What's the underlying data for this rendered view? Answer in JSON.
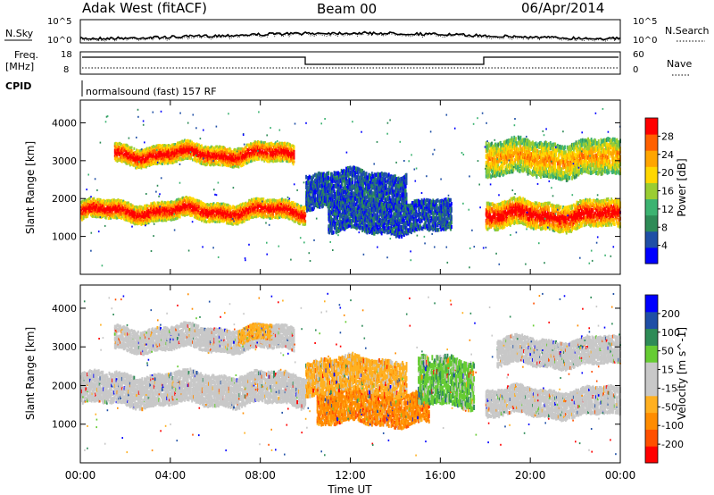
{
  "header": {
    "title": "Adak West (fitACF)",
    "beam": "Beam 00",
    "date": "06/Apr/2014"
  },
  "noise_panel": {
    "left_label": "N.Sky",
    "right_label": "N.Search",
    "left_ticks": [
      "10^5",
      "10^0"
    ],
    "right_ticks": [
      "10^5",
      "10^0"
    ]
  },
  "freq_panel": {
    "left_label_1": "Freq.",
    "left_label_2": "[MHz]",
    "right_label": "Nave",
    "left_ticks": [
      "18",
      "8"
    ],
    "right_ticks": [
      "60",
      "0"
    ]
  },
  "cpid_panel": {
    "label": "CPID",
    "program": "normalsound (fast) 157 RF"
  },
  "colors": {
    "power_scale": [
      "#0000ff",
      "#1f4fa6",
      "#2e8b57",
      "#3cb371",
      "#9acd32",
      "#ffd700",
      "#ffa500",
      "#ff6000",
      "#ff0000"
    ],
    "velocity_scale": [
      "#ff0000",
      "#ff5000",
      "#ff8c00",
      "#ffb020",
      "#c8c8c8",
      "#c8c8c8",
      "#66cc33",
      "#2e8b57",
      "#1f4fa6",
      "#0000ff"
    ]
  },
  "chart_data": [
    {
      "type": "heatmap",
      "name": "power",
      "ylabel": "Slant Range [km]",
      "y_ticks": [
        "1000",
        "2000",
        "3000",
        "4000"
      ],
      "colorbar_label": "Power [dB]",
      "colorbar_ticks": [
        "4",
        "8",
        "12",
        "16",
        "20",
        "24",
        "28"
      ],
      "features": [
        {
          "t": [
            0.0,
            10.0
          ],
          "range": [
            1400,
            1900
          ],
          "level": "high"
        },
        {
          "t": [
            1.5,
            9.5
          ],
          "range": [
            2900,
            3400
          ],
          "level": "high"
        },
        {
          "t": [
            10.0,
            14.5
          ],
          "range": [
            1800,
            2700
          ],
          "level": "low"
        },
        {
          "t": [
            11.0,
            16.5
          ],
          "range": [
            1100,
            1900
          ],
          "level": "low"
        },
        {
          "t": [
            18.0,
            24.0
          ],
          "range": [
            1200,
            1900
          ],
          "level": "high"
        },
        {
          "t": [
            18.0,
            24.0
          ],
          "range": [
            2600,
            3500
          ],
          "level": "mid"
        }
      ]
    },
    {
      "type": "heatmap",
      "name": "velocity",
      "ylabel": "Slant Range [km]",
      "y_ticks": [
        "1000",
        "2000",
        "3000",
        "4000"
      ],
      "colorbar_label": "Velocity [m s^-1]",
      "colorbar_ticks": [
        "200",
        "100",
        "50",
        "15",
        "-15",
        "-50",
        "-100",
        "-200"
      ],
      "features": [
        {
          "t": [
            0.0,
            10.0
          ],
          "range": [
            1500,
            2300
          ],
          "v": "near zero"
        },
        {
          "t": [
            1.5,
            9.5
          ],
          "range": [
            2900,
            3500
          ],
          "v": "near zero"
        },
        {
          "t": [
            7.0,
            8.5
          ],
          "range": [
            3100,
            3500
          ],
          "v": "-50"
        },
        {
          "t": [
            10.5,
            15.5
          ],
          "range": [
            1000,
            1800
          ],
          "v": "-100"
        },
        {
          "t": [
            10.0,
            14.5
          ],
          "range": [
            1800,
            2700
          ],
          "v": "-50"
        },
        {
          "t": [
            15.0,
            17.5
          ],
          "range": [
            1500,
            2700
          ],
          "v": "50"
        },
        {
          "t": [
            18.0,
            24.0
          ],
          "range": [
            1200,
            1900
          ],
          "v": "near zero"
        },
        {
          "t": [
            18.5,
            24.0
          ],
          "range": [
            2500,
            3200
          ],
          "v": "near zero"
        }
      ]
    }
  ],
  "x_axis": {
    "ticks": [
      "00:00",
      "04:00",
      "08:00",
      "12:00",
      "16:00",
      "20:00",
      "00:00"
    ],
    "label": "Time UT"
  }
}
